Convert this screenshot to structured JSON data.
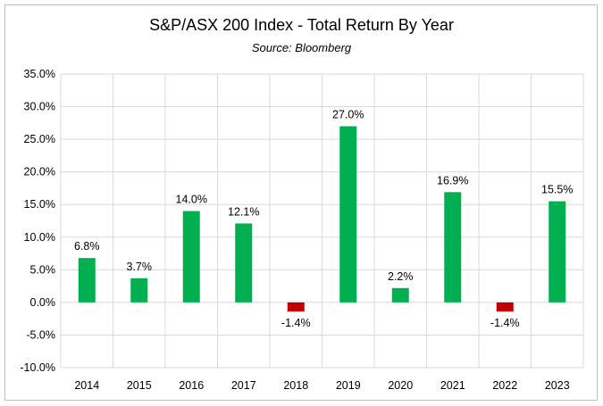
{
  "chart_data": {
    "type": "bar",
    "title": "S&P/ASX 200 Index - Total Return By Year",
    "subtitle": "Source: Bloomberg",
    "categories": [
      "2014",
      "2015",
      "2016",
      "2017",
      "2018",
      "2019",
      "2020",
      "2021",
      "2022",
      "2023"
    ],
    "values": [
      6.8,
      3.7,
      14.0,
      12.1,
      -1.4,
      27.0,
      2.2,
      16.9,
      -1.4,
      15.5
    ],
    "data_labels": [
      "6.8%",
      "3.7%",
      "14.0%",
      "12.1%",
      "-1.4%",
      "27.0%",
      "2.2%",
      "16.9%",
      "-1.4%",
      "15.5%"
    ],
    "ylim": [
      -10,
      35
    ],
    "yticks": [
      35,
      30,
      25,
      20,
      15,
      10,
      5,
      0,
      -5,
      -10
    ],
    "ytick_labels": [
      "35.0%",
      "30.0%",
      "25.0%",
      "20.0%",
      "15.0%",
      "10.0%",
      "5.0%",
      "0.0%",
      "-5.0%",
      "-10.0%"
    ],
    "grid": true,
    "legend": "none",
    "colors": {
      "positive": "#00b050",
      "negative": "#c00000",
      "grid": "#d9d9d9",
      "frame": "#bfbfbf"
    }
  }
}
